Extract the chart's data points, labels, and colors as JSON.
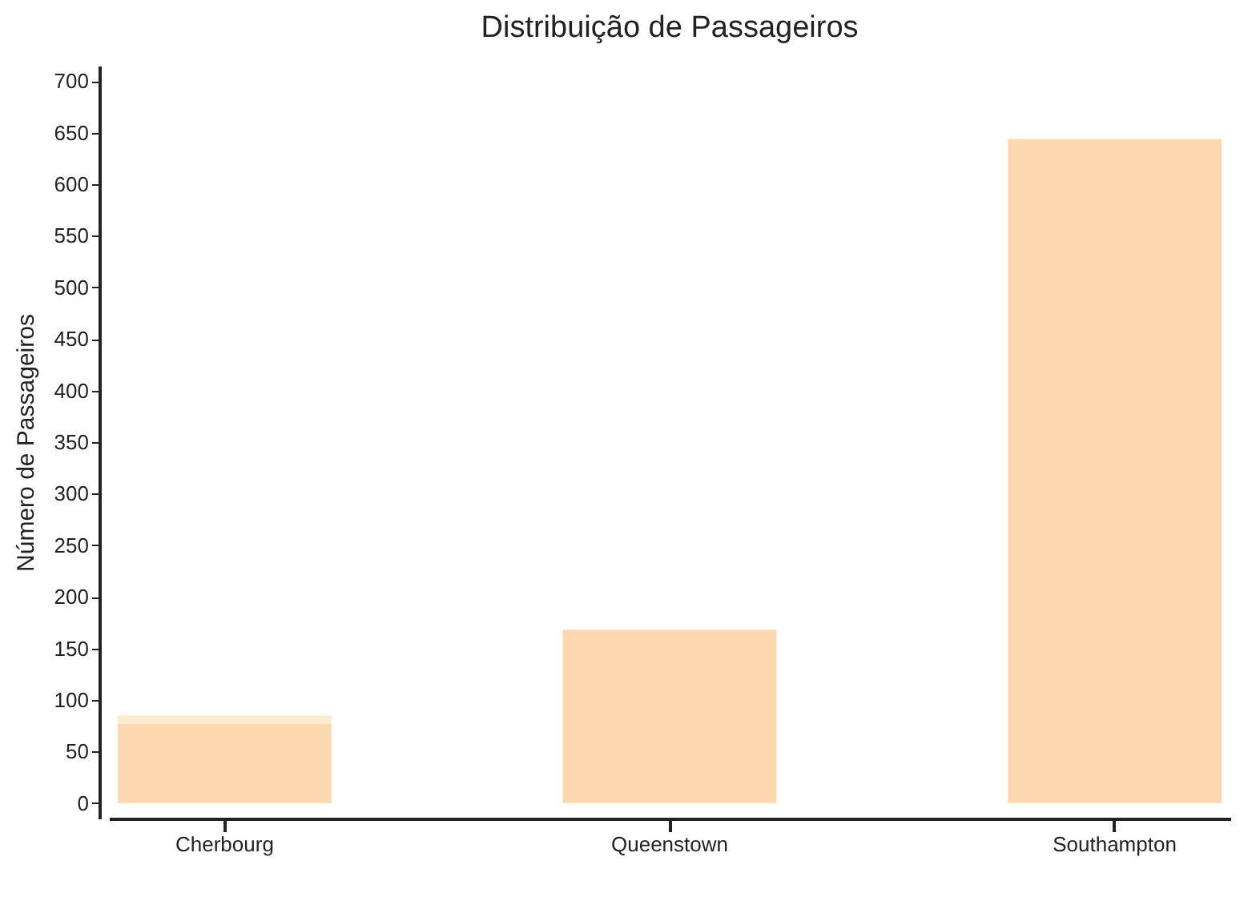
{
  "chart_data": {
    "type": "bar",
    "title": "Distribuição de Passageiros",
    "ylabel": "Número de Passageiros",
    "categories": [
      "Cherbourg",
      "Queenstown",
      "Southampton"
    ],
    "stacked": true,
    "series": [
      {
        "color": "#fdd8b0",
        "values": [
          77,
          168,
          644
        ]
      },
      {
        "color": "#fdebd0",
        "values": [
          8,
          null,
          null
        ]
      }
    ],
    "ylim": [
      -15,
      715
    ],
    "yticks": [
      0,
      50,
      100,
      150,
      200,
      250,
      300,
      350,
      400,
      450,
      500,
      550,
      600,
      650,
      700
    ],
    "grid": false,
    "legend": false
  }
}
